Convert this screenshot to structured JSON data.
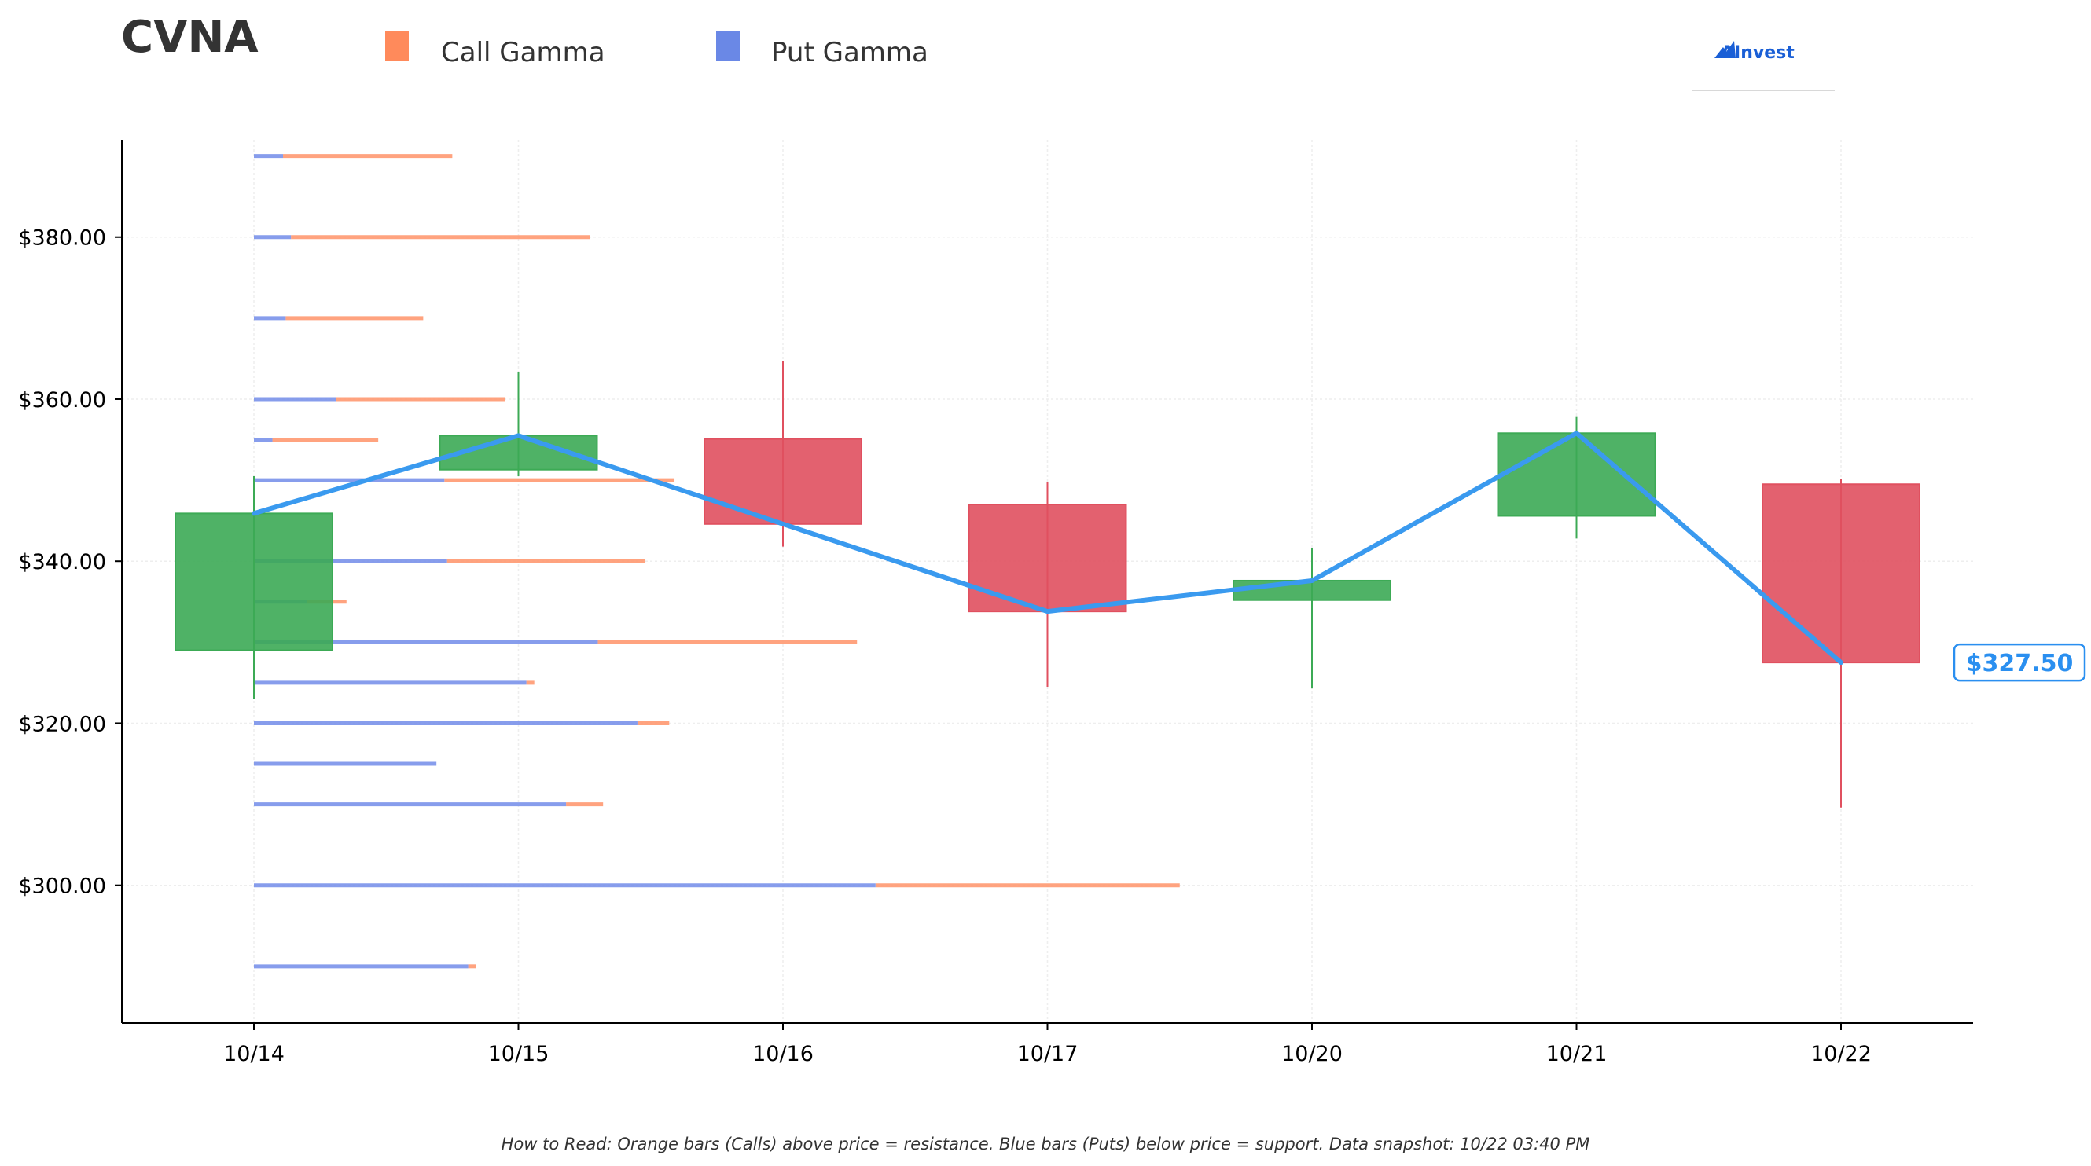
{
  "chart_data": {
    "type": "candlestick",
    "title": "CVNA",
    "legend": [
      {
        "label": "Call Gamma",
        "color": "#ff8a5b"
      },
      {
        "label": "Put Gamma",
        "color": "#6a88e6"
      }
    ],
    "legend_position": "top",
    "brand": "AInvest",
    "categories": [
      "10/14",
      "10/15",
      "10/16",
      "10/17",
      "10/20",
      "10/21",
      "10/22"
    ],
    "y_ticks": [
      "$300.00",
      "$320.00",
      "$340.00",
      "$360.00",
      "$380.00"
    ],
    "y_tick_values": [
      300,
      320,
      340,
      360,
      380
    ],
    "ylim": [
      283,
      392
    ],
    "grid": true,
    "candles": [
      {
        "date": "10/14",
        "open": 329.0,
        "close": 345.9,
        "high": 350.5,
        "low": 323.0
      },
      {
        "date": "10/15",
        "open": 351.3,
        "close": 355.5,
        "high": 363.3,
        "low": 350.5
      },
      {
        "date": "10/16",
        "open": 355.1,
        "close": 344.6,
        "high": 364.7,
        "low": 341.8
      },
      {
        "date": "10/17",
        "open": 347.0,
        "close": 333.8,
        "high": 349.8,
        "low": 324.5
      },
      {
        "date": "10/20",
        "open": 335.2,
        "close": 337.6,
        "high": 341.6,
        "low": 324.3
      },
      {
        "date": "10/21",
        "open": 345.6,
        "close": 355.8,
        "high": 357.8,
        "low": 342.8
      },
      {
        "date": "10/22",
        "open": 349.5,
        "close": 327.5,
        "high": 350.2,
        "low": 309.6
      }
    ],
    "close_line": {
      "values": [
        345.9,
        355.5,
        344.6,
        333.8,
        337.6,
        355.8,
        327.5
      ],
      "color": "#3a9aef"
    },
    "current_price_label": "$327.50",
    "up_color": "#3caa55",
    "down_color": "#e0505f",
    "gamma_unit_note": "bar lengths in day-slots from 10/14",
    "gamma_levels": [
      {
        "strike": 390,
        "put": 0.11,
        "total": 0.75
      },
      {
        "strike": 380,
        "put": 0.14,
        "total": 1.27
      },
      {
        "strike": 370,
        "put": 0.12,
        "total": 0.64
      },
      {
        "strike": 360,
        "put": 0.31,
        "total": 0.95
      },
      {
        "strike": 355,
        "put": 0.07,
        "total": 0.47
      },
      {
        "strike": 350,
        "put": 0.72,
        "total": 1.59
      },
      {
        "strike": 340,
        "put": 0.73,
        "total": 1.48
      },
      {
        "strike": 335,
        "put": 0.2,
        "total": 0.35
      },
      {
        "strike": 330,
        "put": 1.3,
        "total": 2.28
      },
      {
        "strike": 325,
        "put": 1.03,
        "total": 1.06
      },
      {
        "strike": 320,
        "put": 1.45,
        "total": 1.57
      },
      {
        "strike": 315,
        "put": 0.69,
        "total": 0.69
      },
      {
        "strike": 310,
        "put": 1.18,
        "total": 1.32
      },
      {
        "strike": 300,
        "put": 2.35,
        "total": 3.5
      },
      {
        "strike": 290,
        "put": 0.81,
        "total": 0.84
      }
    ],
    "footnote": "How to Read: Orange bars (Calls) above price = resistance. Blue bars (Puts) below price = support. Data snapshot: 10/22 03:40 PM"
  }
}
